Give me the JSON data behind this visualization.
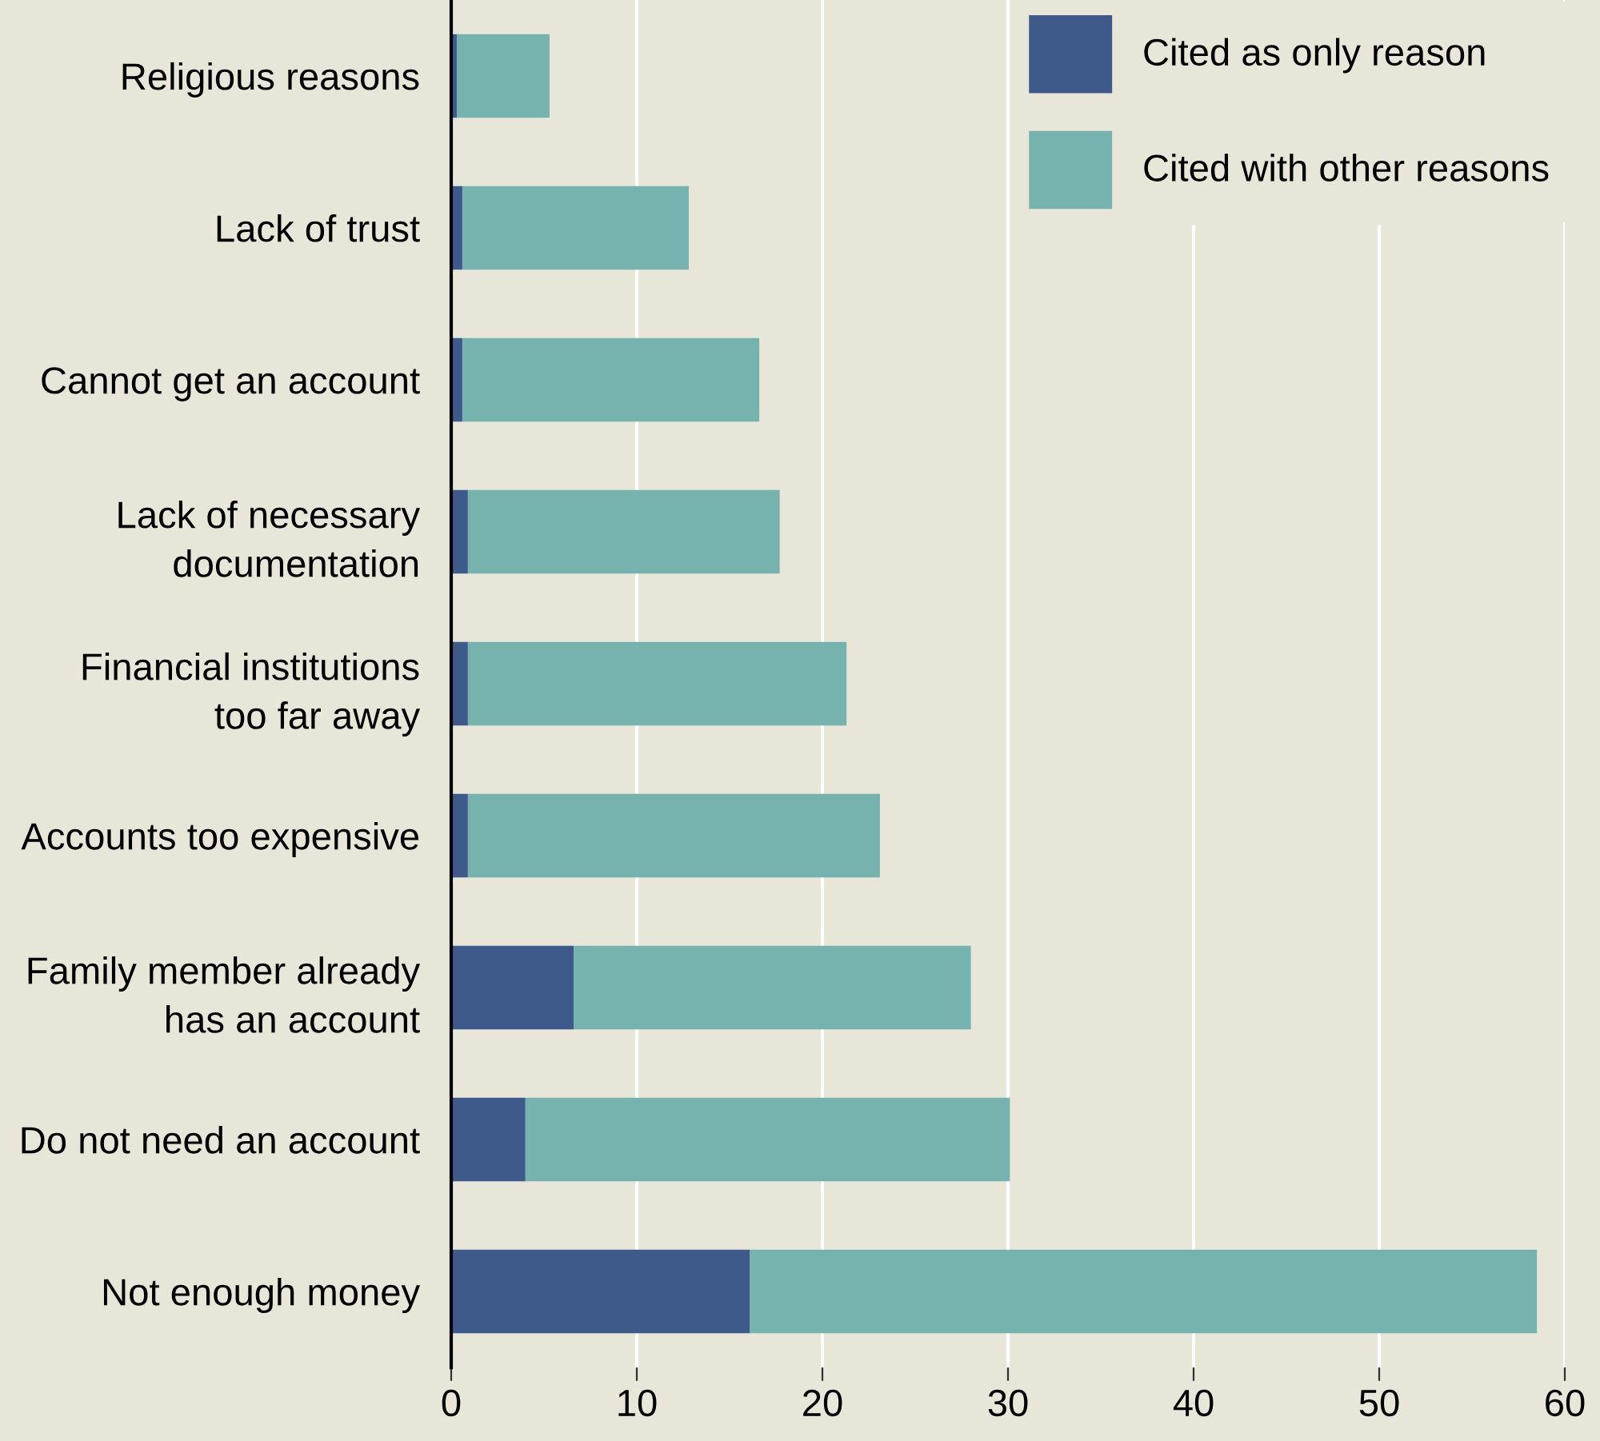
{
  "chart_data": {
    "type": "bar",
    "orientation": "horizontal",
    "stacked": true,
    "categories": [
      "Religious reasons",
      "Lack of trust",
      "Cannot get an account",
      "Lack of necessary\ndocumentation",
      "Financial institutions\ntoo far away",
      "Accounts too expensive",
      "Family member already\nhas an account",
      "Do not need an account",
      "Not enough money"
    ],
    "series": [
      {
        "name": "Cited as only reason",
        "color": "#3d5a8a",
        "values": [
          0.3,
          0.6,
          0.6,
          0.9,
          0.9,
          0.9,
          6.6,
          4.0,
          16.1
        ]
      },
      {
        "name": "Cited with other reasons",
        "color": "#76b3ae",
        "values": [
          5.0,
          12.2,
          16.0,
          16.8,
          20.4,
          22.2,
          21.4,
          26.1,
          42.4
        ]
      }
    ],
    "xlim": [
      0,
      60
    ],
    "xticks": [
      0,
      10,
      20,
      30,
      40,
      50,
      60
    ],
    "grid": "x",
    "legend": "top right"
  }
}
